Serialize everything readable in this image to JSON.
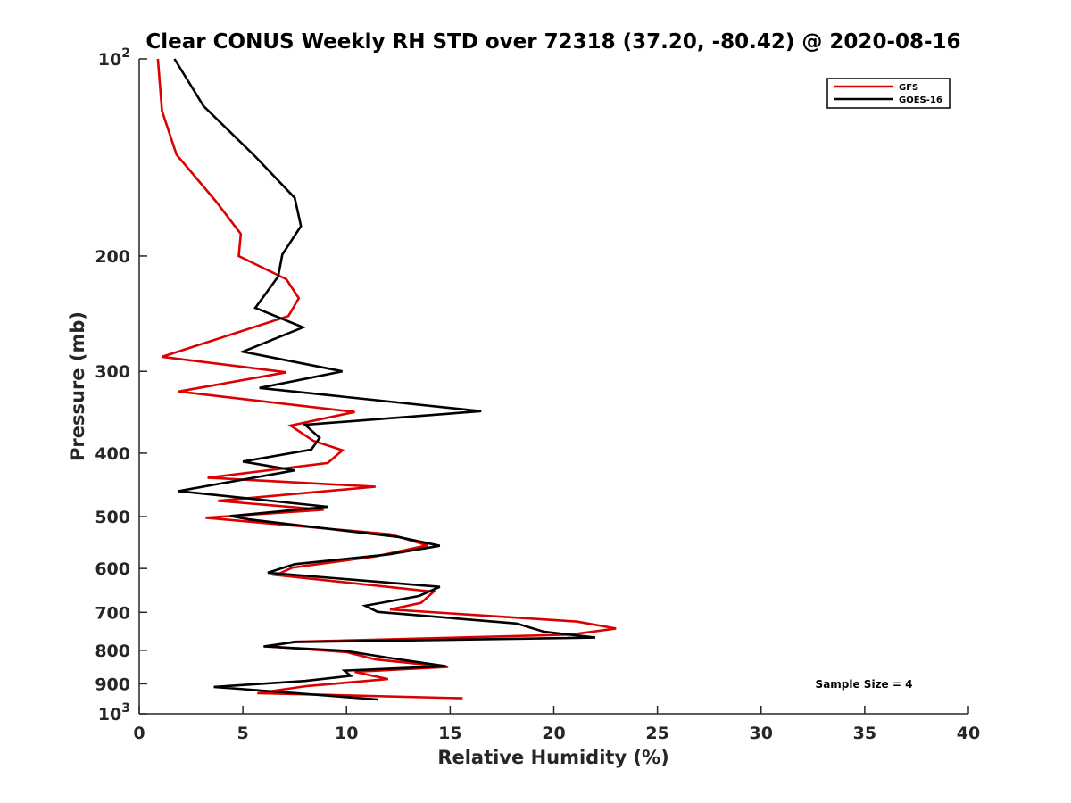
{
  "chart_data": {
    "type": "line",
    "title": "Clear CONUS Weekly RH STD over 72318 (37.20, -80.42) @ 2020-08-16",
    "xlabel": "Relative Humidity (%)",
    "ylabel": "Pressure (mb)",
    "xlim": [
      0,
      40
    ],
    "ylim": [
      100,
      1000
    ],
    "y_scale": "log",
    "y_reversed": true,
    "grid": false,
    "legend_position": "top-right",
    "x_ticks": [
      "0",
      "5",
      "10",
      "15",
      "20",
      "25",
      "30",
      "35",
      "40"
    ],
    "y_ticks": [
      {
        "value": 100,
        "base": "10",
        "exp": "2"
      },
      {
        "value": 200,
        "label": "200"
      },
      {
        "value": 300,
        "label": "300"
      },
      {
        "value": 400,
        "label": "400"
      },
      {
        "value": 500,
        "label": "500"
      },
      {
        "value": 600,
        "label": "600"
      },
      {
        "value": 700,
        "label": "700"
      },
      {
        "value": 800,
        "label": "800"
      },
      {
        "value": 900,
        "label": "900"
      },
      {
        "value": 1000,
        "base": "10",
        "exp": "3"
      }
    ],
    "series": [
      {
        "name": "GFS",
        "color": "#dd0000",
        "x": [
          0.9,
          1.1,
          1.8,
          3.7,
          4.9,
          4.8,
          7.1,
          7.7,
          7.2,
          1.1,
          7.1,
          1.9,
          10.4,
          7.3,
          8.4,
          9.8,
          9.1,
          3.3,
          11.4,
          3.8,
          8.9,
          3.2,
          12.1,
          13.9,
          11.4,
          7.4,
          6.6,
          14.2,
          13.6,
          12.1,
          21.1,
          23.0,
          20.8,
          7.5,
          6.2,
          10.0,
          11.4,
          14.9,
          10.4,
          12.0,
          8.1,
          5.7,
          15.6
        ],
        "y": [
          100,
          120,
          140,
          165,
          185,
          200,
          217,
          232,
          247,
          285,
          301,
          322,
          346,
          363,
          383,
          396,
          414,
          436,
          450,
          473,
          488,
          502,
          532,
          553,
          575,
          598,
          614,
          651,
          677,
          693,
          723,
          741,
          757,
          776,
          789,
          805,
          826,
          848,
          863,
          885,
          907,
          930,
          947
        ]
      },
      {
        "name": "GOES-16",
        "color": "#000000",
        "x": [
          1.7,
          3.1,
          5.6,
          7.5,
          7.8,
          6.9,
          6.7,
          5.6,
          7.9,
          5.0,
          9.8,
          5.8,
          16.5,
          8.0,
          8.7,
          8.3,
          5.0,
          7.5,
          1.9,
          9.1,
          4.4,
          5.3,
          12.5,
          14.5,
          12.0,
          7.5,
          6.2,
          14.5,
          13.5,
          10.9,
          11.5,
          18.2,
          19.5,
          22.0,
          7.5,
          6.0,
          9.9,
          12.0,
          14.8,
          9.9,
          10.2,
          8.0,
          3.6,
          11.5
        ],
        "y": [
          100,
          118,
          141,
          163,
          180,
          199,
          215,
          240,
          257,
          280,
          300,
          318,
          345,
          362,
          379,
          395,
          412,
          425,
          457,
          483,
          499,
          505,
          537,
          554,
          571,
          591,
          609,
          640,
          661,
          684,
          699,
          728,
          749,
          765,
          777,
          789,
          801,
          821,
          846,
          859,
          875,
          891,
          910,
          951
        ]
      }
    ],
    "annotation": "Sample Size = 4"
  }
}
